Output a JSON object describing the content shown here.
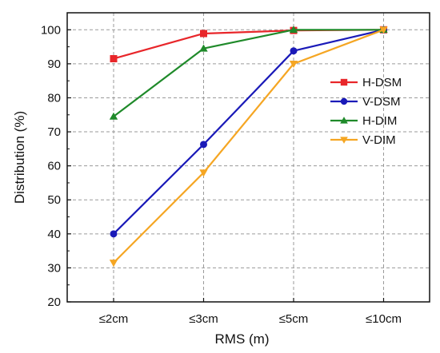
{
  "chart_data": {
    "type": "line",
    "title": "",
    "xlabel": "RMS (m)",
    "ylabel": "Distribution (%)",
    "categories": [
      "≤2cm",
      "≤3cm",
      "≤5cm",
      "≤10cm"
    ],
    "ylim": [
      20,
      105
    ],
    "yticks": [
      20,
      30,
      40,
      50,
      60,
      70,
      80,
      90,
      100
    ],
    "grid": true,
    "legend_position": "right",
    "series": [
      {
        "name": "H-DSM",
        "color": "#e8262a",
        "marker": "square",
        "values": [
          91.5,
          98.9,
          99.8,
          100
        ]
      },
      {
        "name": "V-DSM",
        "color": "#1a1ab8",
        "marker": "circle",
        "values": [
          40,
          66.3,
          93.8,
          100
        ]
      },
      {
        "name": "H-DIM",
        "color": "#1f8a2a",
        "marker": "triangle-up",
        "values": [
          74.5,
          94.5,
          100,
          100
        ]
      },
      {
        "name": "V-DIM",
        "color": "#f5a623",
        "marker": "triangle-down",
        "values": [
          31.5,
          58,
          90,
          100
        ]
      }
    ]
  }
}
